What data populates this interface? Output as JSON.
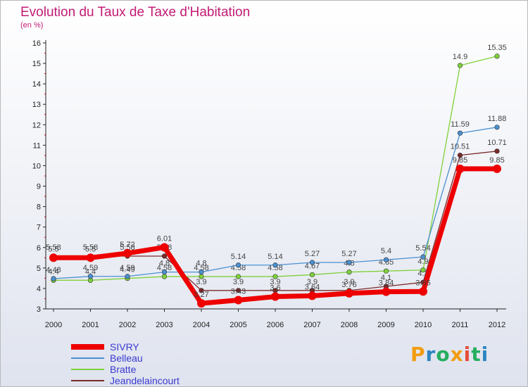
{
  "title": "Evolution du Taux de Taxe d'Habitation",
  "unit_label": "(en %)",
  "logo": {
    "text": "Proxiti",
    "colors": [
      "#f39c12",
      "#2e86c1",
      "#27ae60",
      "#f39c12",
      "#e74c3c",
      "#27ae60",
      "#2e86c1"
    ]
  },
  "chart_data": {
    "type": "line",
    "x": [
      "2000",
      "2001",
      "2002",
      "2003",
      "2004",
      "2005",
      "2006",
      "2007",
      "2008",
      "2009",
      "2010",
      "2011",
      "2012"
    ],
    "ylim": [
      3,
      16
    ],
    "yticks": [
      3,
      4,
      5,
      6,
      7,
      8,
      9,
      10,
      11,
      12,
      13,
      14,
      15,
      16
    ],
    "grid": false,
    "legend_position": "bottom-left",
    "series": [
      {
        "name": "Jeandelaincourt",
        "color": "#7a2a2a",
        "values": [
          5.58,
          5.58,
          5.58,
          5.58,
          3.9,
          3.9,
          3.9,
          3.9,
          3.9,
          4.1,
          4.3,
          10.51,
          10.71
        ],
        "labels": [
          "5.58",
          "5.58",
          "5.58",
          "5.58",
          "3.9",
          "3.9",
          "3.9",
          "3.9",
          "3.9",
          "4.1",
          "4.3",
          "10.51",
          "10.71"
        ]
      },
      {
        "name": "Bratte",
        "color": "#7fd13b",
        "values": [
          4.4,
          4.4,
          4.49,
          4.58,
          4.58,
          4.58,
          4.58,
          4.67,
          4.8,
          4.85,
          4.9,
          14.9,
          15.35
        ],
        "labels": [
          "4.4",
          "4.4",
          "4.49",
          "4.58",
          "4.58",
          "4.58",
          "4.58",
          "4.67",
          "4.8",
          "4.85",
          "4.9",
          "14.9",
          "15.35"
        ]
      },
      {
        "name": "Belleau",
        "color": "#4a90d0",
        "values": [
          4.48,
          4.59,
          4.59,
          4.8,
          4.8,
          5.14,
          5.14,
          5.27,
          5.27,
          5.4,
          5.54,
          11.59,
          11.88
        ],
        "labels": [
          "4.48",
          "4.59",
          "4.59",
          "4.8",
          "4.8",
          "5.14",
          "5.14",
          "5.27",
          "5.27",
          "5.4",
          "5.54",
          "11.59",
          "11.88"
        ]
      },
      {
        "name": "SIVRY",
        "color": "#ee0000",
        "values": [
          5.5,
          5.5,
          5.72,
          6.01,
          3.27,
          3.43,
          3.6,
          3.64,
          3.76,
          3.84,
          3.85,
          9.85,
          9.85
        ],
        "labels": [
          "5.5",
          "5.5",
          "5.72",
          "6.01",
          "3.27",
          "3.43",
          "3.6",
          "3.64",
          "3.76",
          "3.84",
          "3.85",
          "9.85",
          "9.85"
        ]
      }
    ],
    "legend": [
      "SIVRY",
      "Belleau",
      "Bratte",
      "Jeandelaincourt"
    ]
  }
}
